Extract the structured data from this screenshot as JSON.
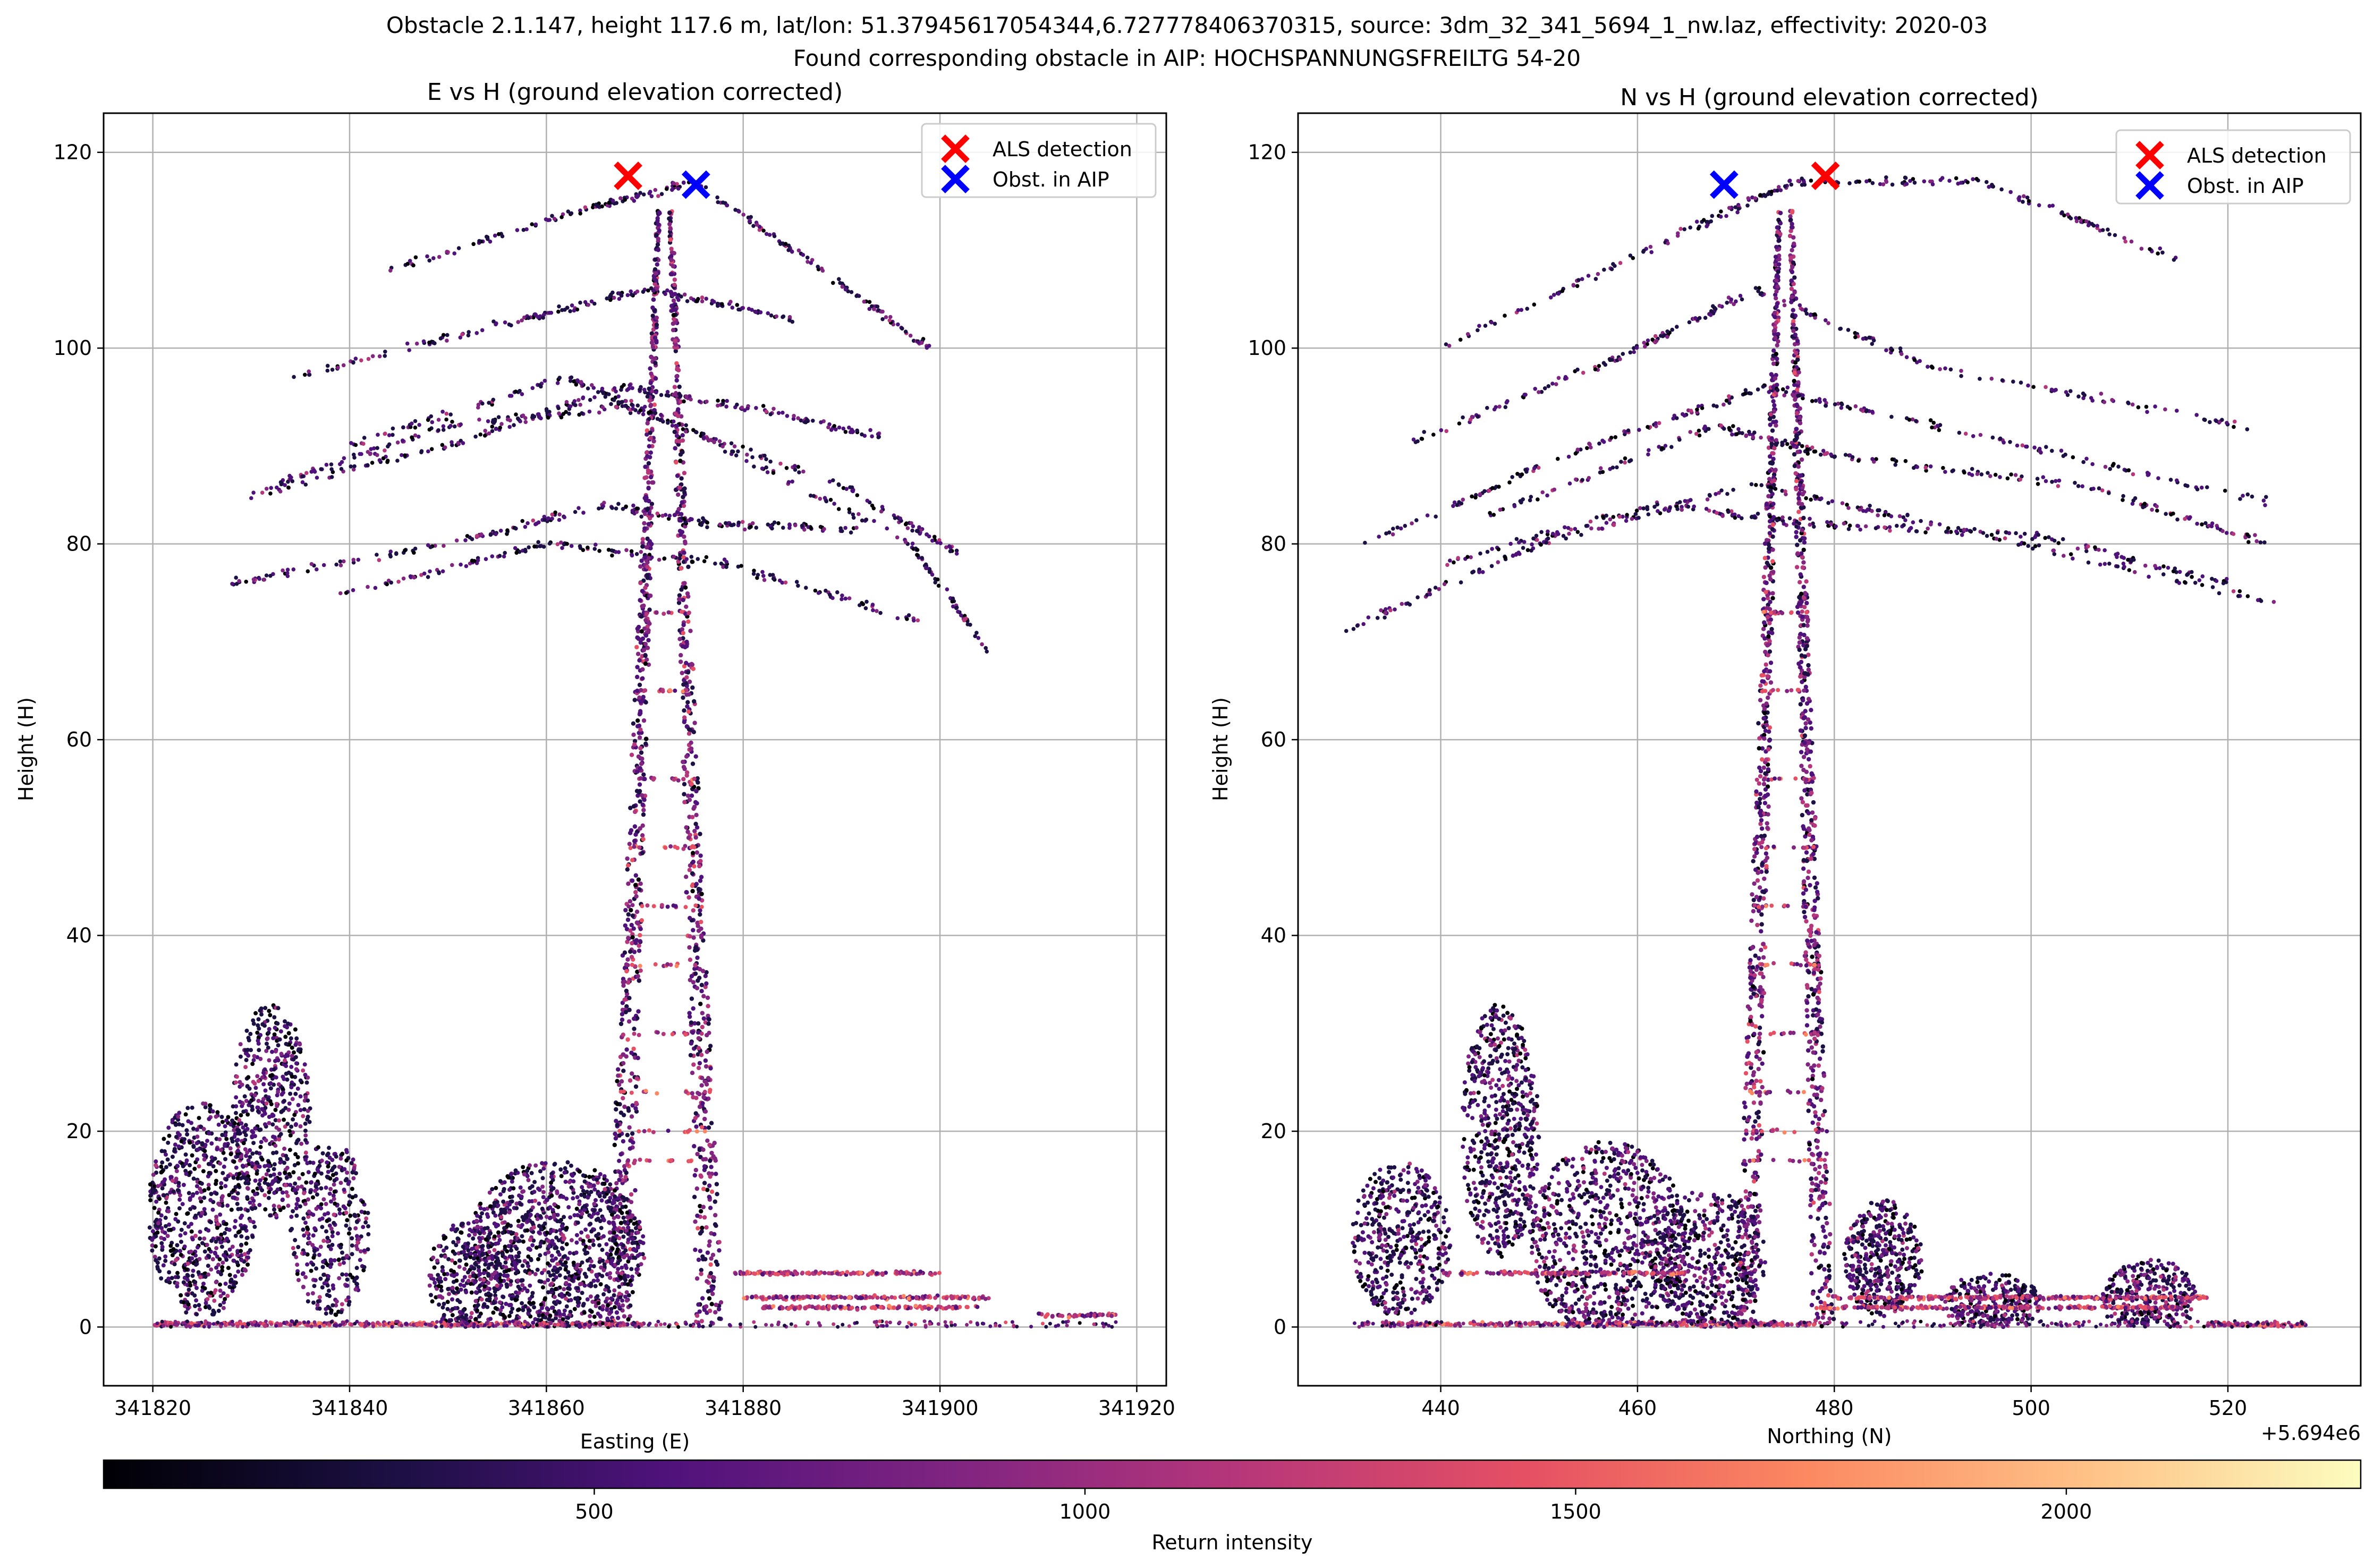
{
  "figure": {
    "suptitle_line1": "Obstacle 2.1.147, height 117.6 m, lat/lon: 51.37945617054344,6.727778406370315, source: 3dm_32_341_5694_1_nw.laz, effectivity: 2020-03",
    "suptitle_line2": "Found corresponding obstacle in AIP: HOCHSPANNUNGSFREILTG 54-20"
  },
  "colorbar": {
    "label": "Return intensity",
    "colormap": "magma",
    "range": [
      0,
      2300
    ],
    "ticks": [
      500,
      1000,
      1500,
      2000
    ]
  },
  "chart_data": [
    {
      "type": "scatter",
      "title": "E vs H (ground elevation corrected)",
      "xlabel": "Easting (E)",
      "ylabel": "Height (H)",
      "xlim": [
        341815,
        341923
      ],
      "ylim": [
        -6,
        124
      ],
      "xticks": [
        341820,
        341840,
        341860,
        341880,
        341900,
        341920
      ],
      "xtick_labels": [
        "341820",
        "341840",
        "341860",
        "341880",
        "341900",
        "341920"
      ],
      "yticks": [
        0,
        20,
        40,
        60,
        80,
        100,
        120
      ],
      "ytick_labels": [
        "0",
        "20",
        "40",
        "60",
        "80",
        "100",
        "120"
      ],
      "offset_text": "",
      "grid": true,
      "legend_position": "top-right",
      "legend": [
        {
          "label": "ALS detection",
          "marker": "x",
          "color": "#ff0000"
        },
        {
          "label": "Obst. in AIP",
          "marker": "x",
          "color": "#0000ff"
        }
      ],
      "markers": {
        "als_detection": {
          "x": 341868.3,
          "y": 117.6
        },
        "obst_in_aip": {
          "x": 341875.2,
          "y": 116.7
        }
      },
      "mast": {
        "center": 341872,
        "top": 114,
        "half_width_top": 0.8,
        "half_width_bottom": 6
      },
      "ground_extent": [
        341820,
        341918
      ],
      "conductors": [
        {
          "x": [
            341828,
            341850,
            341866,
            341877,
            341892
          ],
          "y": [
            76,
            80,
            84,
            82,
            81.5
          ]
        },
        {
          "x": [
            341830,
            341853,
            341868,
            341880,
            341894
          ],
          "y": [
            85,
            91,
            96,
            94,
            91
          ]
        },
        {
          "x": [
            341834,
            341858,
            341870,
            341885
          ],
          "y": [
            97,
            103,
            106,
            103
          ]
        },
        {
          "x": [
            341844,
            341865,
            341875,
            341888,
            341899
          ],
          "y": [
            108,
            114.5,
            117,
            108,
            100
          ]
        },
        {
          "x": [
            341836,
            341860,
            341878,
            341898
          ],
          "y": [
            74,
            80,
            78,
            72
          ]
        },
        {
          "x": [
            341832,
            341850,
            341868,
            341890,
            341902
          ],
          "y": [
            86,
            92,
            94,
            86,
            79
          ]
        },
        {
          "x": [
            341840,
            341862,
            341874,
            341897,
            341905
          ],
          "y": [
            90,
            97,
            92,
            80,
            69
          ]
        }
      ],
      "tree_clusters": [
        {
          "cx": 341825,
          "cy": 12,
          "rx": 5.5,
          "ry": 11,
          "n": 700
        },
        {
          "cx": 341832,
          "cy": 22,
          "rx": 4,
          "ry": 11,
          "n": 500
        },
        {
          "cx": 341838,
          "cy": 10,
          "rx": 4,
          "ry": 9,
          "n": 350
        },
        {
          "cx": 341852,
          "cy": 5,
          "rx": 4,
          "ry": 6,
          "n": 300
        },
        {
          "cx": 341861,
          "cy": 8,
          "rx": 9,
          "ry": 9,
          "n": 1100
        }
      ],
      "ground_lines": [
        {
          "x": [
            341820,
            341870
          ],
          "y": 0.3
        },
        {
          "x": [
            341879,
            341900
          ],
          "y": 5.5
        },
        {
          "x": [
            341880,
            341905
          ],
          "y": 3
        },
        {
          "x": [
            341882,
            341904
          ],
          "y": 2
        },
        {
          "x": [
            341910,
            341918
          ],
          "y": 1.2
        }
      ]
    },
    {
      "type": "scatter",
      "title": "N vs H (ground elevation corrected)",
      "xlabel": "Northing (N)",
      "ylabel": "Height (H)",
      "xlim": [
        5694425.5,
        5694533.5
      ],
      "ylim": [
        -6,
        124
      ],
      "xticks": [
        5694440,
        5694460,
        5694480,
        5694500,
        5694520
      ],
      "xtick_labels": [
        "440",
        "460",
        "480",
        "500",
        "520"
      ],
      "yticks": [
        0,
        20,
        40,
        60,
        80,
        100,
        120
      ],
      "ytick_labels": [
        "0",
        "20",
        "40",
        "60",
        "80",
        "100",
        "120"
      ],
      "offset_text": "+5.694e6",
      "grid": true,
      "legend_position": "top-right",
      "legend": [
        {
          "label": "ALS detection",
          "marker": "x",
          "color": "#ff0000"
        },
        {
          "label": "Obst. in AIP",
          "marker": "x",
          "color": "#0000ff"
        }
      ],
      "markers": {
        "als_detection": {
          "x": 5694479.1,
          "y": 117.6
        },
        "obst_in_aip": {
          "x": 5694468.8,
          "y": 116.7
        }
      },
      "mast": {
        "center": 5694475,
        "top": 114,
        "half_width_top": 0.8,
        "half_width_bottom": 5
      },
      "ground_extent": [
        5694431,
        5694528
      ],
      "conductors": [
        {
          "x": [
            5694430,
            5694450,
            5694472,
            5694490,
            5694525
          ],
          "y": [
            71,
            80,
            86,
            82,
            74
          ]
        },
        {
          "x": [
            5694432,
            5694455,
            5694473,
            5694495,
            5694525
          ],
          "y": [
            80,
            90,
            96,
            91,
            84
          ]
        },
        {
          "x": [
            5694436,
            5694458,
            5694472,
            5694490,
            5694522
          ],
          "y": [
            90,
            99,
            106,
            98,
            92
          ]
        },
        {
          "x": [
            5694440,
            5694465,
            5694476,
            5694495,
            5694515
          ],
          "y": [
            100,
            112,
            117,
            117,
            109
          ]
        },
        {
          "x": [
            5694440,
            5694462,
            5694478,
            5694500,
            5694520
          ],
          "y": [
            78,
            84,
            82,
            81,
            76
          ]
        },
        {
          "x": [
            5694445,
            5694468,
            5694480,
            5694505,
            5694524
          ],
          "y": [
            83,
            92,
            89,
            86,
            80
          ]
        }
      ],
      "tree_clusters": [
        {
          "cx": 5694436,
          "cy": 9,
          "rx": 5,
          "ry": 8,
          "n": 450
        },
        {
          "cx": 5694446,
          "cy": 20,
          "rx": 4,
          "ry": 13,
          "n": 600
        },
        {
          "cx": 5694457,
          "cy": 9,
          "rx": 8,
          "ry": 10,
          "n": 800
        },
        {
          "cx": 5694467,
          "cy": 7,
          "rx": 6,
          "ry": 7,
          "n": 500
        },
        {
          "cx": 5694485,
          "cy": 7,
          "rx": 4,
          "ry": 6,
          "n": 400
        },
        {
          "cx": 5694496,
          "cy": 2.5,
          "rx": 5,
          "ry": 3,
          "n": 250
        },
        {
          "cx": 5694512,
          "cy": 3,
          "rx": 5,
          "ry": 4,
          "n": 300
        }
      ],
      "ground_lines": [
        {
          "x": [
            5694432,
            5694478
          ],
          "y": 0.3
        },
        {
          "x": [
            5694440,
            5694465
          ],
          "y": 5.5
        },
        {
          "x": [
            5694480,
            5694518
          ],
          "y": 3
        },
        {
          "x": [
            5694478,
            5694515
          ],
          "y": 2
        },
        {
          "x": [
            5694518,
            5694528
          ],
          "y": 0.2
        }
      ]
    }
  ]
}
